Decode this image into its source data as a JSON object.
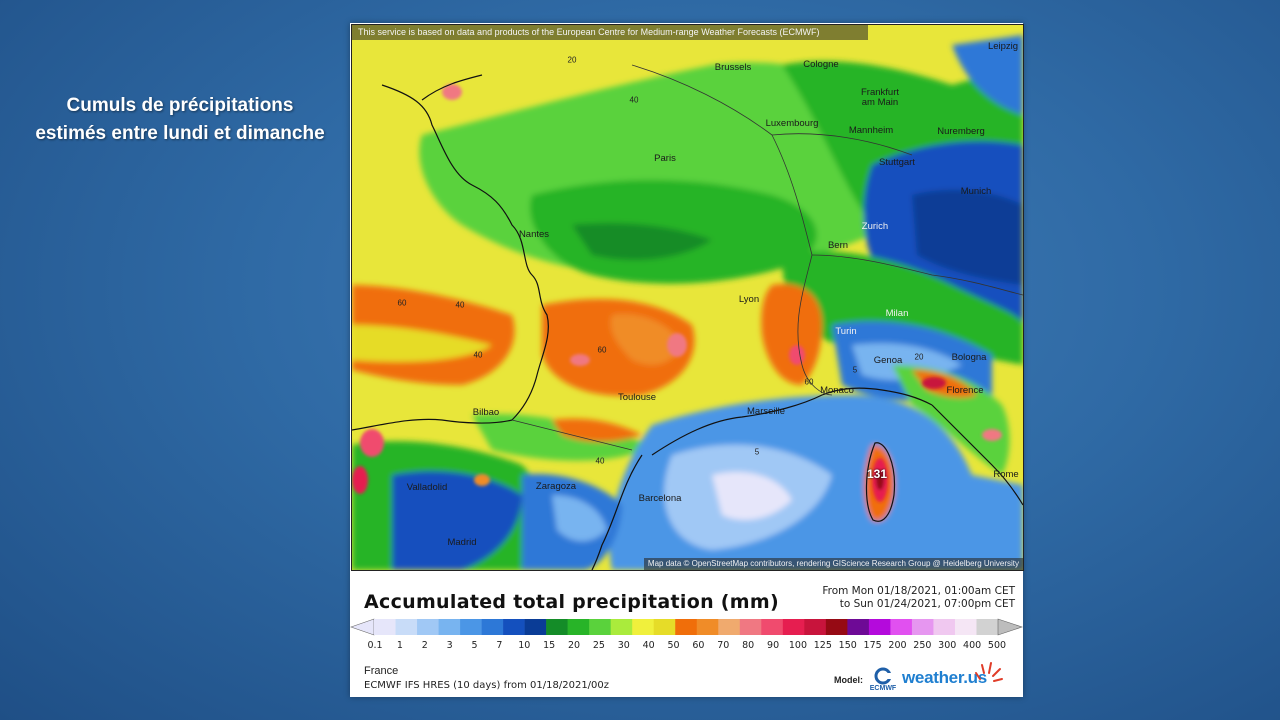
{
  "slide": {
    "title_line1": "Cumuls de précipitations",
    "title_line2": "estimés entre lundi et dimanche"
  },
  "map": {
    "attribution_top": "This service is based on data and products of the European Centre for Medium-range Weather Forecasts (ECMWF)",
    "attribution_bottom": "Map data © OpenStreetMap contributors, rendering GIScience Research Group @ Heidelberg University",
    "cities": {
      "leipzig": "Leipzig",
      "brussels": "Brussels",
      "cologne": "Cologne",
      "frankfurt": "Frankfurt\nam Main",
      "luxembourg": "Luxembourg",
      "mannheim": "Mannheim",
      "nuremberg": "Nuremberg",
      "paris": "Paris",
      "stuttgart": "Stuttgart",
      "munich": "Munich",
      "nantes": "Nantes",
      "zurich": "Zurich",
      "bern": "Bern",
      "lyon": "Lyon",
      "milan": "Milan",
      "turin": "Turin",
      "genoa": "Genoa",
      "bologna": "Bologna",
      "monaco": "Monaco",
      "florence": "Florence",
      "toulouse": "Toulouse",
      "marseille": "Marseille",
      "bilbao": "Bilbao",
      "rome": "Rome",
      "valladolid": "Valladolid",
      "zaragoza": "Zaragoza",
      "barcelona": "Barcelona",
      "madrid": "Madrid"
    },
    "peak_value": "131",
    "contour_labels": [
      "20",
      "40",
      "60",
      "5",
      "80"
    ]
  },
  "legend": {
    "title": "Accumulated total precipitation (mm)",
    "period_from": "From Mon 01/18/2021, 01:00am CET",
    "period_to": "to Sun 01/24/2021, 07:00pm CET",
    "ticks": [
      "0.1",
      "1",
      "2",
      "3",
      "5",
      "7",
      "10",
      "15",
      "20",
      "25",
      "30",
      "40",
      "50",
      "60",
      "70",
      "80",
      "90",
      "100",
      "125",
      "150",
      "175",
      "200",
      "250",
      "300",
      "400",
      "500"
    ],
    "colors": [
      "#e6e6fa",
      "#c8dcf8",
      "#a0c8f5",
      "#78b4f0",
      "#4b96e6",
      "#2d78d7",
      "#1450be",
      "#0a3c96",
      "#148c28",
      "#28b428",
      "#5ad23c",
      "#aaeb3c",
      "#f0f03c",
      "#e6dc28",
      "#f06e0a",
      "#f08c28",
      "#f0aa6e",
      "#f07882",
      "#f04b6e",
      "#e61e50",
      "#c8143c",
      "#960a14",
      "#6e0a96",
      "#b40adc",
      "#e150f0",
      "#e696f0",
      "#f0c8f0",
      "#f5e6f5",
      "#d2d2d2"
    ],
    "region": "France",
    "model_line": "ECMWF IFS HRES (10 days)  from  01/18/2021/00z",
    "model_label": "Model:",
    "brand": "weather.us"
  }
}
